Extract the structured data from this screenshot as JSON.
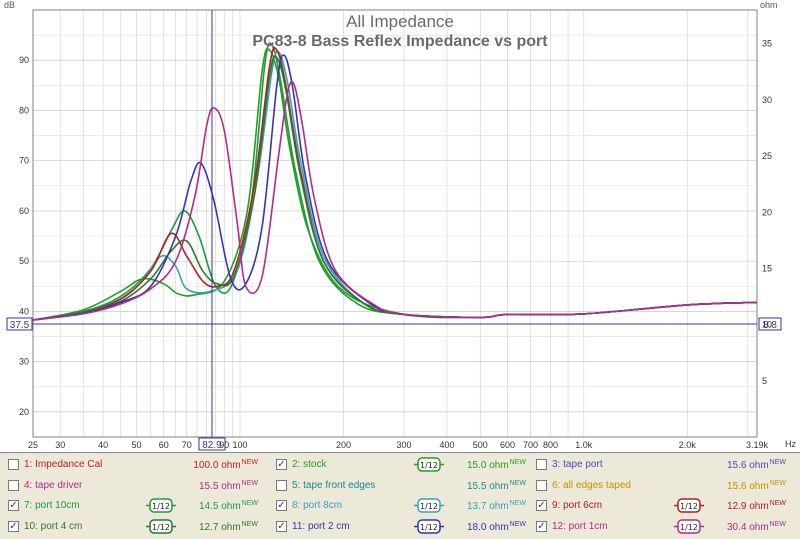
{
  "chart_data": {
    "type": "line",
    "title": "All Impedance",
    "subtitle": "PC83-8 Bass Reflex Impedance vs port",
    "y_left_unit": "dB",
    "y_right_unit": "ohm",
    "x_unit": "Hz",
    "xlim": [
      25,
      3190
    ],
    "ylim_left": [
      15,
      100
    ],
    "ylim_right": [
      0,
      38
    ],
    "x_scale": "log",
    "grid": true,
    "x_ticks": [
      {
        "v": 25,
        "label": "25"
      },
      {
        "v": 30,
        "label": "30"
      },
      {
        "v": 40,
        "label": "40"
      },
      {
        "v": 50,
        "label": "50"
      },
      {
        "v": 60,
        "label": "60"
      },
      {
        "v": 70,
        "label": "70"
      },
      {
        "v": 90,
        "label": "90"
      },
      {
        "v": 100,
        "label": "100"
      },
      {
        "v": 200,
        "label": "200"
      },
      {
        "v": 300,
        "label": "300"
      },
      {
        "v": 400,
        "label": "400"
      },
      {
        "v": 500,
        "label": "500"
      },
      {
        "v": 600,
        "label": "600"
      },
      {
        "v": 700,
        "label": "700"
      },
      {
        "v": 800,
        "label": "800"
      },
      {
        "v": 1000,
        "label": "1.0k"
      },
      {
        "v": 2000,
        "label": "2.0k"
      },
      {
        "v": 3190,
        "label": "3.19k"
      }
    ],
    "y_left_ticks": [
      20,
      30,
      40,
      50,
      60,
      70,
      80,
      90
    ],
    "y_right_ticks": [
      5,
      10,
      15,
      20,
      25,
      30,
      35
    ],
    "cursor": {
      "x": 82.9,
      "x_label": "82.9",
      "y_left_label": "37.5",
      "y_right_label": "8.8",
      "y_value": 37.5
    },
    "series": [
      {
        "name": "stock",
        "color": "#22a022",
        "x": [
          25,
          35,
          45,
          52,
          60,
          66,
          74,
          90,
          105,
          116,
          122,
          130,
          140,
          160,
          200,
          300,
          500,
          600,
          1000,
          2000,
          3190
        ],
        "y": [
          38.3,
          40.3,
          44.0,
          46.5,
          45.5,
          43.5,
          43.3,
          46.0,
          60.0,
          88.0,
          92.0,
          86.0,
          72.0,
          55.0,
          44.0,
          39.4,
          38.8,
          39.4,
          39.5,
          41.3,
          41.8
        ]
      },
      {
        "name": "port 10cm",
        "color": "#1e9a3e",
        "x": [
          25,
          35,
          45,
          55,
          63,
          69,
          76,
          85,
          95,
          108,
          118,
          124,
          132,
          145,
          170,
          220,
          300,
          500,
          600,
          1000,
          2000,
          3190
        ],
        "y": [
          38.3,
          40.0,
          43.0,
          48.5,
          56.0,
          60.0,
          55.0,
          45.0,
          45.5,
          62.0,
          89.0,
          93.0,
          85.0,
          68.0,
          50.0,
          41.5,
          39.4,
          38.8,
          39.4,
          39.5,
          41.3,
          41.8
        ]
      },
      {
        "name": "port 8cm",
        "color": "#3aa0b8",
        "x": [
          25,
          35,
          45,
          52,
          59,
          65,
          70,
          82,
          98,
          112,
          124,
          130,
          138,
          150,
          175,
          230,
          300,
          500,
          600,
          1000,
          2000,
          3190
        ],
        "y": [
          38.3,
          39.8,
          42.5,
          46.0,
          51.0,
          49.0,
          44.5,
          44.0,
          48.0,
          66.0,
          88.0,
          91.5,
          85.0,
          70.0,
          51.0,
          41.5,
          39.4,
          38.8,
          39.4,
          39.5,
          41.3,
          41.8
        ]
      },
      {
        "name": "port 6cm",
        "color": "#b02020",
        "x": [
          25,
          35,
          45,
          55,
          63,
          70,
          78,
          86,
          96,
          110,
          122,
          128,
          136,
          150,
          175,
          230,
          300,
          500,
          600,
          1000,
          2000,
          3190
        ],
        "y": [
          38.3,
          39.8,
          42.5,
          48.0,
          55.5,
          51.0,
          46.0,
          45.0,
          48.0,
          65.0,
          89.0,
          92.0,
          85.0,
          68.0,
          50.0,
          41.5,
          39.4,
          38.8,
          39.4,
          39.5,
          41.3,
          41.8
        ]
      },
      {
        "name": "port 4 cm",
        "color": "#2a7a2a",
        "x": [
          25,
          35,
          45,
          55,
          63,
          70,
          78,
          86,
          96,
          110,
          122,
          128,
          136,
          150,
          175,
          230,
          300,
          500,
          600,
          1000,
          2000,
          3190
        ],
        "y": [
          38.3,
          39.8,
          42.0,
          46.5,
          52.0,
          54.0,
          48.0,
          45.5,
          47.0,
          63.0,
          87.0,
          90.5,
          84.0,
          67.0,
          50.0,
          41.5,
          39.4,
          38.8,
          39.4,
          39.5,
          41.3,
          41.8
        ]
      },
      {
        "name": "port 2 cm",
        "color": "#3535b0",
        "x": [
          25,
          35,
          45,
          55,
          65,
          72,
          77,
          84,
          94,
          104,
          116,
          128,
          134,
          142,
          155,
          180,
          240,
          300,
          500,
          600,
          1000,
          2000,
          3190
        ],
        "y": [
          38.3,
          39.6,
          41.8,
          45.0,
          55.0,
          66.0,
          69.5,
          62.0,
          46.5,
          45.5,
          57.0,
          85.0,
          91.0,
          85.0,
          67.0,
          50.0,
          41.5,
          39.4,
          38.8,
          39.4,
          39.5,
          41.3,
          41.8
        ]
      },
      {
        "name": "port 1cm",
        "color": "#b02c8c",
        "x": [
          25,
          35,
          45,
          55,
          65,
          74,
          80,
          84,
          90,
          98,
          104,
          116,
          130,
          138,
          144,
          152,
          165,
          190,
          250,
          300,
          500,
          600,
          1000,
          2000,
          3190
        ],
        "y": [
          38.3,
          39.5,
          41.5,
          44.5,
          50.0,
          63.0,
          77.0,
          80.5,
          76.0,
          58.0,
          45.0,
          47.0,
          72.0,
          84.0,
          85.0,
          77.0,
          62.0,
          48.0,
          41.0,
          39.4,
          38.8,
          39.4,
          39.5,
          41.3,
          41.8
        ]
      }
    ]
  },
  "legend": {
    "rows": [
      [
        {
          "checked": false,
          "name": "1: Impedance Cal",
          "value": "100.0 ohm",
          "new": "NEW",
          "color": "#c02020",
          "smooth": ""
        },
        {
          "checked": true,
          "name": "2: stock",
          "value": "15.0 ohm",
          "new": "NEW",
          "color": "#22a022",
          "smooth": "1/12"
        },
        {
          "checked": false,
          "name": "3: tape port",
          "value": "15.6 ohm",
          "new": "NEW",
          "color": "#4a4ac0",
          "smooth": ""
        }
      ],
      [
        {
          "checked": false,
          "name": "4: tape driver",
          "value": "15.5 ohm",
          "new": "NEW",
          "color": "#b02c8c",
          "smooth": ""
        },
        {
          "checked": false,
          "name": "5: tape front edges",
          "value": "15.5 ohm",
          "new": "NEW",
          "color": "#1a8a8a",
          "smooth": ""
        },
        {
          "checked": false,
          "name": "6: all edges taped",
          "value": "15.6 ohm",
          "new": "NEW",
          "color": "#c89000",
          "smooth": ""
        }
      ],
      [
        {
          "checked": true,
          "name": "7: port 10cm",
          "value": "14.5 ohm",
          "new": "NEW",
          "color": "#1e9a3e",
          "smooth": "1/12"
        },
        {
          "checked": true,
          "name": "8: port 8cm",
          "value": "13.7 ohm",
          "new": "NEW",
          "color": "#3aa0b8",
          "smooth": "1/12"
        },
        {
          "checked": true,
          "name": "9: port 6cm",
          "value": "12.9 ohm",
          "new": "NEW",
          "color": "#b02020",
          "smooth": "1/12"
        }
      ],
      [
        {
          "checked": true,
          "name": "10: port 4 cm",
          "value": "12.7 ohm",
          "new": "NEW",
          "color": "#2a7a2a",
          "smooth": "1/12"
        },
        {
          "checked": true,
          "name": "11: port 2 cm",
          "value": "18.0 ohm",
          "new": "NEW",
          "color": "#3535b0",
          "smooth": "1/12"
        },
        {
          "checked": true,
          "name": "12: port 1cm",
          "value": "30.4 ohm",
          "new": "NEW",
          "color": "#b02c8c",
          "smooth": "1/12"
        }
      ]
    ]
  }
}
